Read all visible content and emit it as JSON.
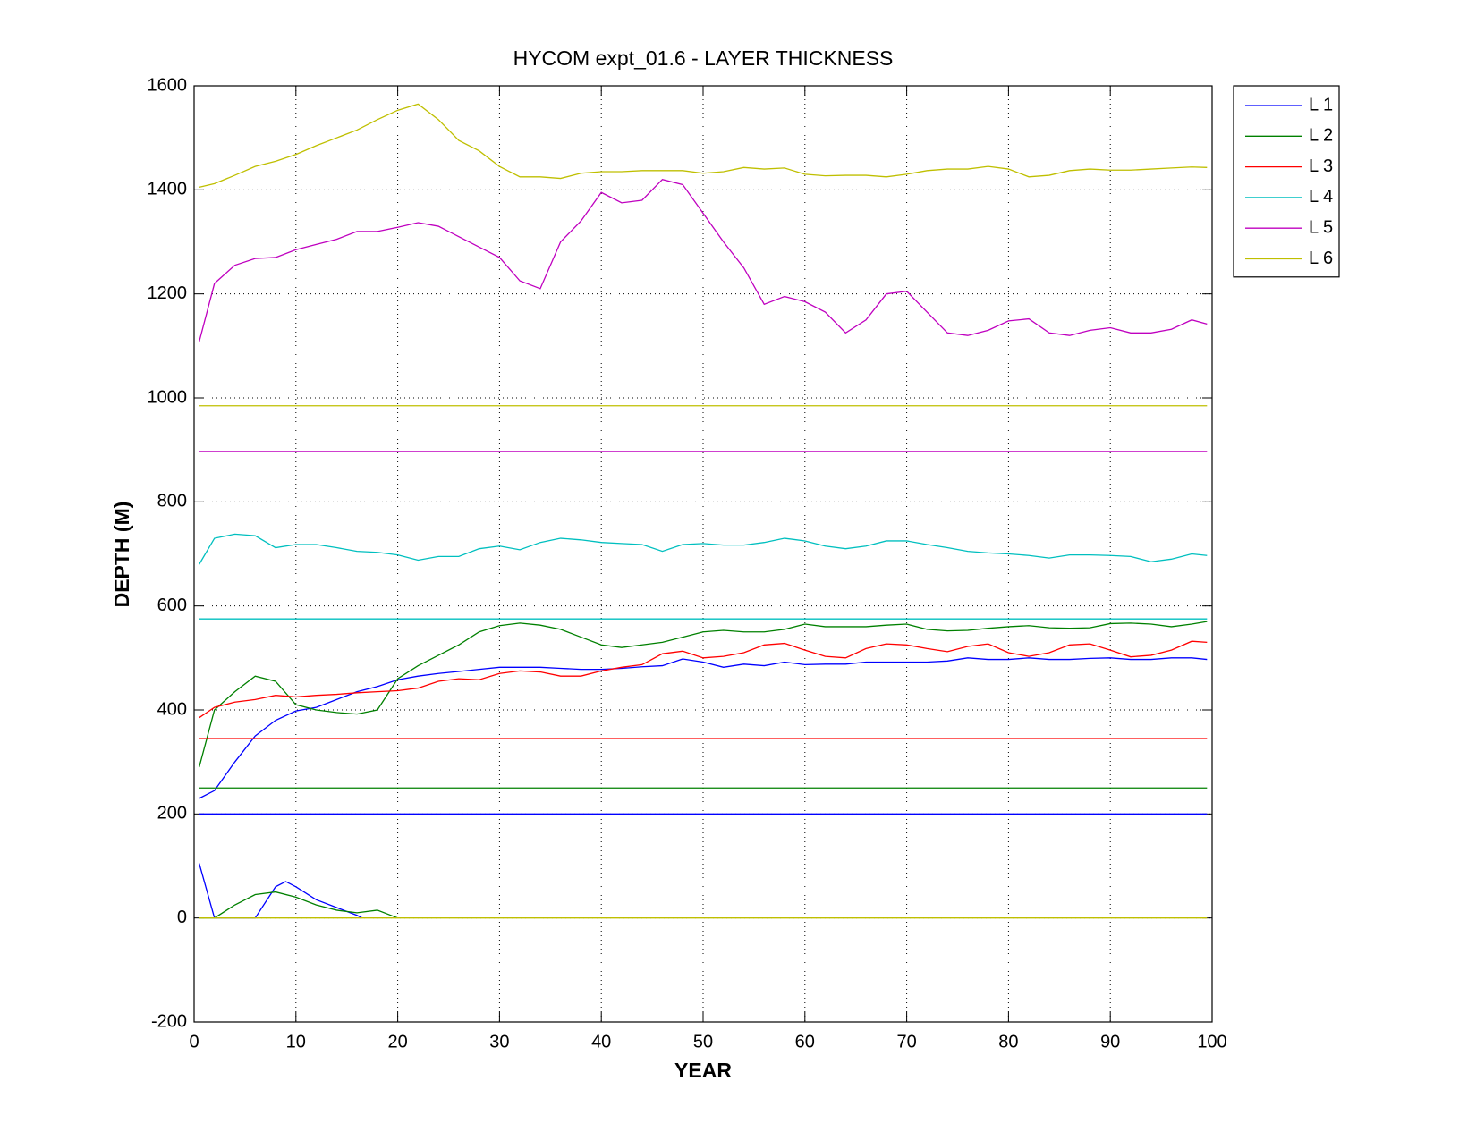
{
  "chart_data": {
    "type": "line",
    "title": "HYCOM expt_01.6 - LAYER THICKNESS",
    "x_label": "YEAR",
    "y_label": "DEPTH (M)",
    "xlim": [
      0,
      100
    ],
    "ylim": [
      -200,
      1600
    ],
    "xticks": [
      0,
      10,
      20,
      30,
      40,
      50,
      60,
      70,
      80,
      90,
      100
    ],
    "yticks": [
      -200,
      0,
      200,
      400,
      600,
      800,
      1000,
      1200,
      1400,
      1600
    ],
    "grid": true,
    "legend": "outside-right",
    "x": [
      0.5,
      2,
      4,
      6,
      8,
      10,
      12,
      14,
      16,
      18,
      20,
      22,
      24,
      26,
      28,
      30,
      32,
      34,
      36,
      38,
      40,
      42,
      44,
      46,
      48,
      50,
      52,
      54,
      56,
      58,
      60,
      62,
      64,
      66,
      68,
      70,
      72,
      74,
      76,
      78,
      80,
      82,
      84,
      86,
      88,
      90,
      92,
      94,
      96,
      98,
      99.5
    ],
    "series": [
      {
        "name": "L 1",
        "color": "#0000ff",
        "values": [
          230,
          245,
          300,
          350,
          380,
          398,
          405,
          420,
          435,
          445,
          458,
          465,
          470,
          474,
          478,
          482,
          482,
          482,
          480,
          478,
          478,
          480,
          483,
          485,
          498,
          492,
          482,
          488,
          485,
          492,
          487,
          488,
          488,
          492,
          492,
          492,
          492,
          494,
          500,
          497,
          497,
          500,
          497,
          497,
          499,
          500,
          497,
          497,
          500,
          500,
          497
        ]
      },
      {
        "name": "L 2",
        "color": "#008000",
        "values": [
          290,
          400,
          435,
          465,
          455,
          410,
          400,
          395,
          392,
          400,
          460,
          485,
          505,
          525,
          550,
          562,
          567,
          563,
          555,
          540,
          525,
          520,
          525,
          530,
          540,
          550,
          553,
          550,
          550,
          555,
          565,
          560,
          560,
          560,
          563,
          565,
          555,
          552,
          553,
          557,
          560,
          562,
          558,
          557,
          558,
          566,
          567,
          565,
          560,
          565,
          570
        ]
      },
      {
        "name": "L 3",
        "color": "#ff0000",
        "values": [
          385,
          405,
          415,
          420,
          428,
          425,
          428,
          430,
          433,
          435,
          437,
          442,
          455,
          460,
          458,
          470,
          475,
          473,
          465,
          465,
          475,
          482,
          487,
          508,
          513,
          500,
          503,
          510,
          525,
          528,
          515,
          503,
          500,
          518,
          527,
          525,
          518,
          512,
          522,
          527,
          510,
          503,
          510,
          525,
          527,
          515,
          502,
          505,
          515,
          532,
          530
        ]
      },
      {
        "name": "L 4",
        "color": "#00bfbf",
        "values": [
          680,
          730,
          738,
          735,
          712,
          718,
          718,
          712,
          705,
          703,
          698,
          688,
          695,
          695,
          710,
          715,
          708,
          722,
          730,
          727,
          722,
          720,
          718,
          705,
          718,
          720,
          717,
          717,
          722,
          730,
          725,
          715,
          710,
          715,
          725,
          725,
          718,
          712,
          705,
          702,
          700,
          697,
          692,
          698,
          698,
          697,
          695,
          685,
          690,
          700,
          697
        ]
      },
      {
        "name": "L 5",
        "color": "#bf00bf",
        "values": [
          1108,
          1220,
          1255,
          1268,
          1270,
          1285,
          1295,
          1305,
          1320,
          1320,
          1328,
          1337,
          1330,
          1310,
          1290,
          1270,
          1225,
          1210,
          1300,
          1340,
          1395,
          1375,
          1380,
          1420,
          1410,
          1355,
          1300,
          1250,
          1180,
          1195,
          1185,
          1165,
          1125,
          1150,
          1200,
          1205,
          1165,
          1125,
          1120,
          1130,
          1148,
          1152,
          1125,
          1120,
          1130,
          1135,
          1125,
          1125,
          1132,
          1150,
          1142
        ]
      },
      {
        "name": "L 6",
        "color": "#bfbf00",
        "values": [
          1405,
          1412,
          1428,
          1445,
          1455,
          1468,
          1485,
          1500,
          1515,
          1535,
          1553,
          1565,
          1535,
          1495,
          1475,
          1445,
          1425,
          1425,
          1422,
          1432,
          1435,
          1435,
          1437,
          1437,
          1437,
          1432,
          1435,
          1443,
          1440,
          1442,
          1430,
          1427,
          1428,
          1428,
          1425,
          1430,
          1437,
          1440,
          1440,
          1445,
          1440,
          1425,
          1428,
          1437,
          1440,
          1438,
          1438,
          1440,
          1442,
          1444,
          1443
        ]
      },
      {
        "color": "#0000ff",
        "x": [
          0.5,
          99.5
        ],
        "values": [
          200,
          200
        ]
      },
      {
        "color": "#008000",
        "x": [
          0.5,
          99.5
        ],
        "values": [
          250,
          250
        ]
      },
      {
        "color": "#ff0000",
        "x": [
          0.5,
          99.5
        ],
        "values": [
          345,
          345
        ]
      },
      {
        "color": "#00bfbf",
        "x": [
          0.5,
          99.5
        ],
        "values": [
          575,
          575
        ]
      },
      {
        "color": "#bf00bf",
        "x": [
          0.5,
          99.5
        ],
        "values": [
          897,
          897
        ]
      },
      {
        "color": "#bfbf00",
        "x": [
          0.5,
          99.5
        ],
        "values": [
          985,
          985
        ]
      },
      {
        "color": "#0000ff",
        "x": [
          0.5,
          2,
          4,
          6,
          8,
          9,
          10,
          12,
          14,
          16,
          16.5
        ],
        "values": [
          105,
          0,
          0,
          0,
          60,
          70,
          60,
          35,
          20,
          5,
          0
        ]
      },
      {
        "color": "#008000",
        "x": [
          0.5,
          2,
          4,
          6,
          8,
          10,
          12,
          14,
          16,
          18,
          20
        ],
        "values": [
          0,
          0,
          25,
          45,
          50,
          40,
          25,
          15,
          10,
          15,
          0
        ]
      },
      {
        "color": "#bfbf00",
        "x": [
          0.5,
          99.5
        ],
        "values": [
          0,
          0
        ]
      }
    ]
  }
}
